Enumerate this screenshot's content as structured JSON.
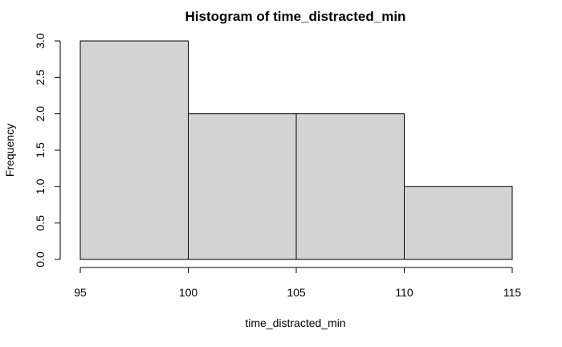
{
  "chart_data": {
    "type": "bar",
    "title": "Histogram of time_distracted_min",
    "xlabel": "time_distracted_min",
    "ylabel": "Frequency",
    "bins": [
      {
        "start": 95,
        "end": 100,
        "count": 3
      },
      {
        "start": 100,
        "end": 105,
        "count": 2
      },
      {
        "start": 105,
        "end": 110,
        "count": 2
      },
      {
        "start": 110,
        "end": 115,
        "count": 1
      }
    ],
    "xlim": [
      95,
      115
    ],
    "ylim": [
      0,
      3
    ],
    "x_ticks": [
      "95",
      "100",
      "105",
      "110",
      "115"
    ],
    "y_ticks": [
      "0.0",
      "0.5",
      "1.0",
      "1.5",
      "2.0",
      "2.5",
      "3.0"
    ],
    "bar_fill": "#d3d3d3",
    "grid": false,
    "legend": "none"
  }
}
